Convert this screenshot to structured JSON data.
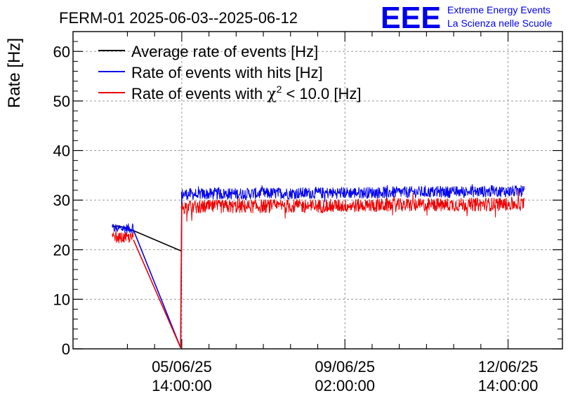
{
  "title": "FERM-01 2025-06-03--2025-06-12",
  "logo": {
    "mark": "EEE",
    "line1": "Extreme Energy Events",
    "line2": "La Scienza nelle Scuole",
    "color": "#0000ee"
  },
  "chart_data": {
    "type": "line",
    "ylabel": "Rate [Hz]",
    "xlabel": "",
    "ylim": [
      0,
      64
    ],
    "xlim_days": [
      0.0,
      9.0
    ],
    "yticks": [
      0,
      10,
      20,
      30,
      40,
      50,
      60
    ],
    "grid": true,
    "legend_position": "top-left",
    "x_ticks": [
      {
        "t": 2.0,
        "date": "05/06/25",
        "time": "14:00:00"
      },
      {
        "t": 5.0,
        "date": "09/06/25",
        "time": "02:00:00"
      },
      {
        "t": 8.0,
        "date": "12/06/25",
        "time": "14:00:00"
      }
    ],
    "series": [
      {
        "name": "Average rate of events [Hz]",
        "color": "#000000",
        "points": [
          [
            0.72,
            24.6
          ],
          [
            0.84,
            24.8
          ],
          [
            0.94,
            24.5
          ],
          [
            1.08,
            24.0
          ],
          [
            2.0,
            19.7
          ]
        ]
      },
      {
        "name": "Rate of events with hits [Hz]",
        "color": "#0000ee",
        "segments": [
          {
            "t0": 0.72,
            "t1": 1.11,
            "mean": 24.3,
            "noise": 1.0
          },
          {
            "t0": 1.99,
            "t1": 8.3,
            "mean": 31.2,
            "noise": 1.2,
            "trend": 0.15
          }
        ],
        "bridge": [
          [
            1.11,
            24.0
          ],
          [
            1.98,
            0.2
          ],
          [
            2.0,
            31.5
          ]
        ]
      },
      {
        "name": "Rate of events with χ² < 10.0 [Hz]",
        "color": "#ee0000",
        "segments": [
          {
            "t0": 0.72,
            "t1": 1.11,
            "mean": 22.4,
            "noise": 1.1
          },
          {
            "t0": 1.99,
            "t1": 8.3,
            "mean": 28.6,
            "noise": 1.4,
            "trend": 0.15
          }
        ],
        "bridge": [
          [
            1.11,
            22.0
          ],
          [
            1.98,
            0.2
          ],
          [
            2.0,
            28.8
          ]
        ]
      }
    ],
    "legend": [
      {
        "text": "Average rate of events [Hz]",
        "color": "#000000"
      },
      {
        "text": "Rate of events with hits [Hz]",
        "color": "#0000ee"
      },
      {
        "text_before": "Rate of events with ",
        "symbol": "χ",
        "sup": "2",
        "text_after": " < 10.0 [Hz]",
        "color": "#ee0000"
      }
    ]
  }
}
